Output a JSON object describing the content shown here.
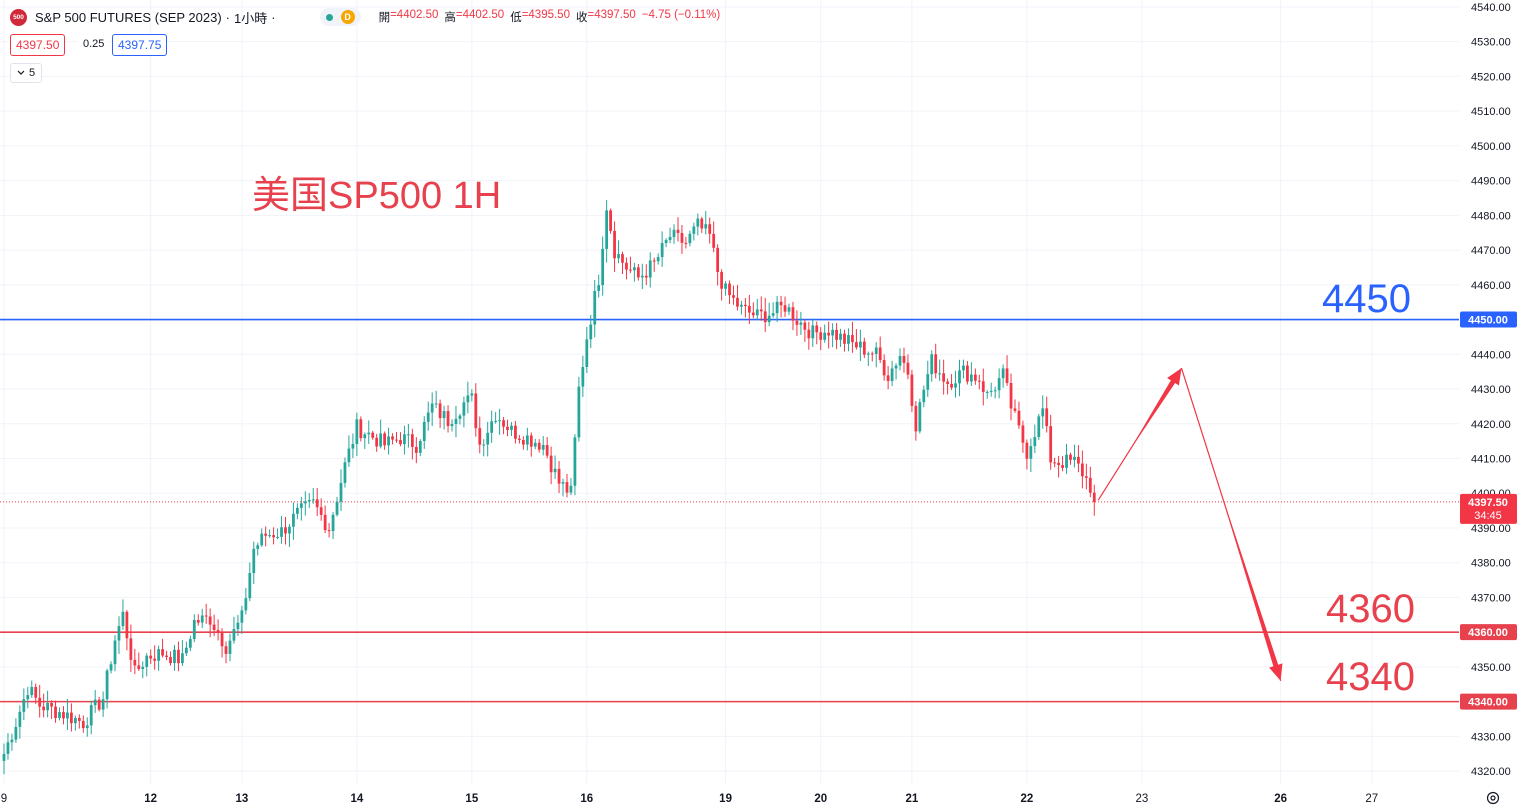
{
  "header": {
    "logo_text": "500",
    "symbol_title": "S&P 500 FUTURES (SEP 2023)",
    "separator": "·",
    "interval": "1小時",
    "status_icon": "dot-icon",
    "d_badge": "D",
    "ohlc": [
      {
        "label": "開",
        "value": "=4402.50"
      },
      {
        "label": "高",
        "value": "=4402.50"
      },
      {
        "label": "低",
        "value": "=4395.50"
      },
      {
        "label": "收",
        "value": "=4397.50"
      }
    ],
    "change": "−4.75 (−0.11%)",
    "bid": "4397.50",
    "spread": "0.25",
    "ask": "4397.75",
    "indicators_count": "5"
  },
  "annotations": {
    "title": "美国SP500 1H",
    "level_4450": "4450",
    "level_4360": "4360",
    "level_4340": "4340"
  },
  "axis_badges": {
    "level_4450": "4450.00",
    "level_4360": "4360.00",
    "level_4340": "4340.00",
    "last_price": "4397.50",
    "countdown": "34:45"
  },
  "colors": {
    "up": "#26a69a",
    "down": "#f23645",
    "blue_line": "#2962ff",
    "red_line": "#e8414e",
    "axis_text": "#131722",
    "grid": "#f0f3fa"
  },
  "chart_data": {
    "type": "candlestick",
    "title": "美国SP500 1H",
    "interval": "1小時",
    "ylim": [
      4316,
      4542
    ],
    "y_ticks": [
      4320,
      4330,
      4340,
      4350,
      4360,
      4370,
      4380,
      4390,
      4400,
      4410,
      4420,
      4430,
      4440,
      4450,
      4460,
      4470,
      4480,
      4490,
      4500,
      4510,
      4520,
      4530,
      4540
    ],
    "x_tick_labels": [
      {
        "label": "9",
        "bar": 0
      },
      {
        "label": "12",
        "bar": 37
      },
      {
        "label": "13",
        "bar": 60
      },
      {
        "label": "14",
        "bar": 89
      },
      {
        "label": "15",
        "bar": 118
      },
      {
        "label": "16",
        "bar": 147
      },
      {
        "label": "19",
        "bar": 182
      },
      {
        "label": "20",
        "bar": 206
      },
      {
        "label": "21",
        "bar": 229
      },
      {
        "label": "22",
        "bar": 258
      },
      {
        "label": "23",
        "bar": 287
      },
      {
        "label": "26",
        "bar": 322
      },
      {
        "label": "27",
        "bar": 345
      }
    ],
    "bar_count_view": 368,
    "horizontal_levels": [
      {
        "value": 4450,
        "label": "4450",
        "color": "#2962ff"
      },
      {
        "value": 4360,
        "label": "4360",
        "color": "#e8414e"
      },
      {
        "value": 4340,
        "label": "4340",
        "color": "#e8414e"
      }
    ],
    "last_price": 4397.5,
    "projection": [
      {
        "bar": 276,
        "price": 4398
      },
      {
        "bar": 297,
        "price": 4436
      },
      {
        "bar": 322,
        "price": 4346
      }
    ],
    "anchors": [
      {
        "bar": 0,
        "price": 4325
      },
      {
        "bar": 3,
        "price": 4334
      },
      {
        "bar": 6,
        "price": 4344
      },
      {
        "bar": 9,
        "price": 4339
      },
      {
        "bar": 14,
        "price": 4337
      },
      {
        "bar": 20,
        "price": 4334
      },
      {
        "bar": 25,
        "price": 4341
      },
      {
        "bar": 28,
        "price": 4358
      },
      {
        "bar": 30,
        "price": 4365
      },
      {
        "bar": 33,
        "price": 4348
      },
      {
        "bar": 36,
        "price": 4353
      },
      {
        "bar": 40,
        "price": 4354
      },
      {
        "bar": 45,
        "price": 4352
      },
      {
        "bar": 48,
        "price": 4363
      },
      {
        "bar": 52,
        "price": 4364
      },
      {
        "bar": 56,
        "price": 4356
      },
      {
        "bar": 60,
        "price": 4364
      },
      {
        "bar": 63,
        "price": 4384
      },
      {
        "bar": 66,
        "price": 4388
      },
      {
        "bar": 70,
        "price": 4389
      },
      {
        "bar": 74,
        "price": 4394
      },
      {
        "bar": 78,
        "price": 4397
      },
      {
        "bar": 82,
        "price": 4390
      },
      {
        "bar": 86,
        "price": 4408
      },
      {
        "bar": 89,
        "price": 4419
      },
      {
        "bar": 92,
        "price": 4417
      },
      {
        "bar": 96,
        "price": 4414
      },
      {
        "bar": 100,
        "price": 4416
      },
      {
        "bar": 104,
        "price": 4414
      },
      {
        "bar": 108,
        "price": 4425
      },
      {
        "bar": 112,
        "price": 4421
      },
      {
        "bar": 116,
        "price": 4426
      },
      {
        "bar": 118,
        "price": 4427
      },
      {
        "bar": 120,
        "price": 4414
      },
      {
        "bar": 124,
        "price": 4423
      },
      {
        "bar": 128,
        "price": 4418
      },
      {
        "bar": 132,
        "price": 4416
      },
      {
        "bar": 136,
        "price": 4414
      },
      {
        "bar": 140,
        "price": 4403
      },
      {
        "bar": 143,
        "price": 4400
      },
      {
        "bar": 145,
        "price": 4430
      },
      {
        "bar": 147,
        "price": 4445
      },
      {
        "bar": 150,
        "price": 4462
      },
      {
        "bar": 152,
        "price": 4483
      },
      {
        "bar": 154,
        "price": 4470
      },
      {
        "bar": 157,
        "price": 4465
      },
      {
        "bar": 160,
        "price": 4462
      },
      {
        "bar": 164,
        "price": 4466
      },
      {
        "bar": 168,
        "price": 4474
      },
      {
        "bar": 172,
        "price": 4472
      },
      {
        "bar": 175,
        "price": 4477
      },
      {
        "bar": 178,
        "price": 4474
      },
      {
        "bar": 180,
        "price": 4464
      },
      {
        "bar": 182,
        "price": 4458
      },
      {
        "bar": 186,
        "price": 4453
      },
      {
        "bar": 190,
        "price": 4451
      },
      {
        "bar": 194,
        "price": 4452
      },
      {
        "bar": 197,
        "price": 4454
      },
      {
        "bar": 200,
        "price": 4450
      },
      {
        "bar": 204,
        "price": 4446
      },
      {
        "bar": 208,
        "price": 4447
      },
      {
        "bar": 212,
        "price": 4444
      },
      {
        "bar": 216,
        "price": 4442
      },
      {
        "bar": 220,
        "price": 4440
      },
      {
        "bar": 223,
        "price": 4434
      },
      {
        "bar": 226,
        "price": 4440
      },
      {
        "bar": 228,
        "price": 4435
      },
      {
        "bar": 230,
        "price": 4420
      },
      {
        "bar": 232,
        "price": 4430
      },
      {
        "bar": 234,
        "price": 4438
      },
      {
        "bar": 238,
        "price": 4432
      },
      {
        "bar": 242,
        "price": 4435
      },
      {
        "bar": 246,
        "price": 4433
      },
      {
        "bar": 248,
        "price": 4428
      },
      {
        "bar": 252,
        "price": 4434
      },
      {
        "bar": 254,
        "price": 4425
      },
      {
        "bar": 256,
        "price": 4418
      },
      {
        "bar": 258,
        "price": 4412
      },
      {
        "bar": 260,
        "price": 4418
      },
      {
        "bar": 262,
        "price": 4424
      },
      {
        "bar": 264,
        "price": 4410
      },
      {
        "bar": 266,
        "price": 4409
      },
      {
        "bar": 270,
        "price": 4409
      },
      {
        "bar": 272,
        "price": 4406
      },
      {
        "bar": 274,
        "price": 4402
      },
      {
        "bar": 275,
        "price": 4397.5
      }
    ]
  }
}
